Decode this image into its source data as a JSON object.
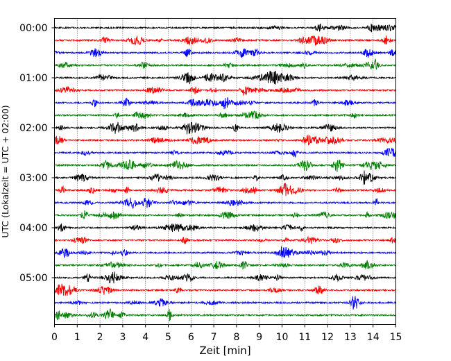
{
  "chart_data": {
    "type": "line",
    "subtype": "helicorder-seismogram",
    "title": "",
    "xlabel": "Zeit  [min]",
    "ylabel": "UTC (Lokalzeit = UTC + 02:00)",
    "xlim": [
      0,
      15
    ],
    "x_ticks": [
      "0",
      "1",
      "2",
      "3",
      "4",
      "5",
      "6",
      "7",
      "8",
      "9",
      "10",
      "11",
      "12",
      "13",
      "14",
      "15"
    ],
    "y_ticks": [
      "00:00",
      "01:00",
      "02:00",
      "03:00",
      "04:00",
      "05:00"
    ],
    "rows_per_hour": 4,
    "row_minutes": 15,
    "grid": "vertical dotted at each minute",
    "color_cycle": [
      "#000000",
      "#ff0000",
      "#0000ff",
      "#008000"
    ],
    "rows": [
      {
        "start": "00:00",
        "color": "#000000"
      },
      {
        "start": "00:15",
        "color": "#ff0000"
      },
      {
        "start": "00:30",
        "color": "#0000ff"
      },
      {
        "start": "00:45",
        "color": "#008000"
      },
      {
        "start": "01:00",
        "color": "#000000"
      },
      {
        "start": "01:15",
        "color": "#ff0000"
      },
      {
        "start": "01:30",
        "color": "#0000ff"
      },
      {
        "start": "01:45",
        "color": "#008000"
      },
      {
        "start": "02:00",
        "color": "#000000"
      },
      {
        "start": "02:15",
        "color": "#ff0000"
      },
      {
        "start": "02:30",
        "color": "#0000ff"
      },
      {
        "start": "02:45",
        "color": "#008000"
      },
      {
        "start": "03:00",
        "color": "#000000"
      },
      {
        "start": "03:15",
        "color": "#ff0000"
      },
      {
        "start": "03:30",
        "color": "#0000ff"
      },
      {
        "start": "03:45",
        "color": "#008000"
      },
      {
        "start": "04:00",
        "color": "#000000"
      },
      {
        "start": "04:15",
        "color": "#ff0000"
      },
      {
        "start": "04:30",
        "color": "#0000ff"
      },
      {
        "start": "04:45",
        "color": "#008000"
      },
      {
        "start": "05:00",
        "color": "#000000"
      },
      {
        "start": "05:15",
        "color": "#ff0000"
      },
      {
        "start": "05:30",
        "color": "#0000ff"
      },
      {
        "start": "05:45",
        "color": "#008000"
      }
    ]
  }
}
